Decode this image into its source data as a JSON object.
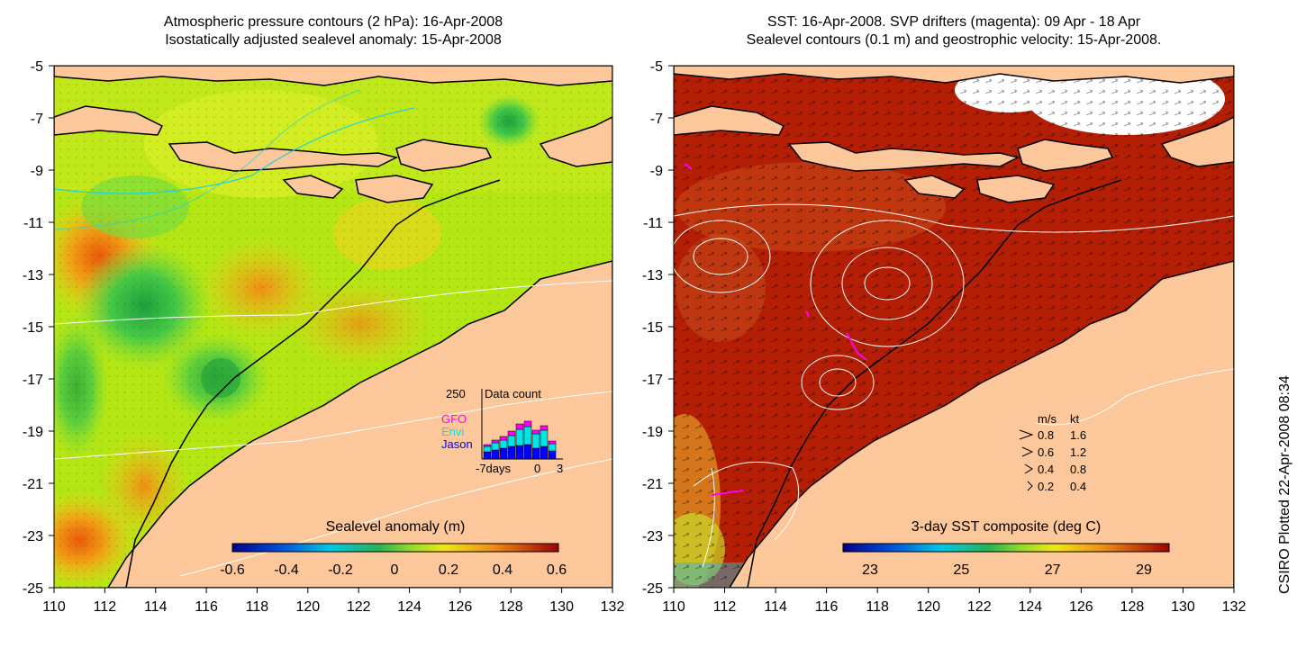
{
  "left_panel": {
    "title_line1": "Atmospheric pressure contours (2 hPa): 16-Apr-2008",
    "title_line2": "Isostatically adjusted sealevel anomaly: 15-Apr-2008",
    "colorbar_label": "Sealevel anomaly (m)",
    "colorbar_ticks": [
      "-0.6",
      "-0.4",
      "-0.2",
      "0",
      "0.2",
      "0.4",
      "0.6"
    ],
    "inset": {
      "top_value": "250",
      "title": "Data count",
      "legend": [
        {
          "name": "GFO",
          "color": "#ff00ff"
        },
        {
          "name": "Envi",
          "color": "#00e5e5"
        },
        {
          "name": "Jason",
          "color": "#0000ff"
        }
      ],
      "x_ticks": [
        "-7days",
        "0",
        "3"
      ]
    }
  },
  "right_panel": {
    "title_line1": "SST: 16-Apr-2008. SVP drifters (magenta): 09 Apr - 18 Apr",
    "title_line2": "Sealevel contours (0.1 m) and geostrophic velocity: 15-Apr-2008.",
    "colorbar_label": "3-day SST composite (deg C)",
    "colorbar_ticks": [
      "23",
      "25",
      "27",
      "29"
    ],
    "speed_legend": {
      "header_ms": "m/s",
      "header_kt": "kt",
      "rows": [
        {
          "ms": "0.8",
          "kt": "1.6"
        },
        {
          "ms": "0.6",
          "kt": "1.2"
        },
        {
          "ms": "0.4",
          "kt": "0.8"
        },
        {
          "ms": "0.2",
          "kt": "0.4"
        }
      ]
    }
  },
  "axes": {
    "x_ticks": [
      "110",
      "112",
      "114",
      "116",
      "118",
      "120",
      "122",
      "124",
      "126",
      "128",
      "130",
      "132"
    ],
    "y_ticks": [
      "-5",
      "-7",
      "-9",
      "-11",
      "-13",
      "-15",
      "-17",
      "-19",
      "-21",
      "-23",
      "-25"
    ]
  },
  "credit": "CSIRO Plotted 22-Apr-2008 08:34",
  "colors": {
    "land": "#fcc79b",
    "sea_anomaly_base": "#b4e614",
    "sst_base": "#b41e05",
    "contour_white": "#ffffff",
    "contour_cyan": "#1ed2dc",
    "drifter_magenta": "#ff00ff"
  }
}
